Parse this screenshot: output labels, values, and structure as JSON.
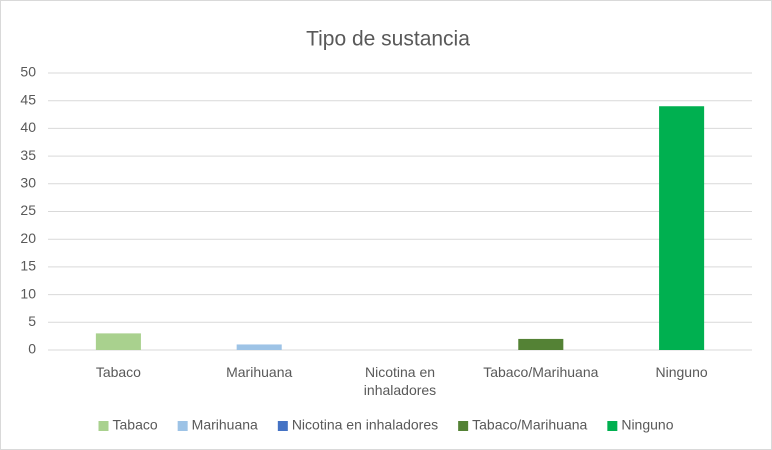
{
  "chart_data": {
    "type": "bar",
    "title": "Tipo de sustancia",
    "categories": [
      "Tabaco",
      "Marihuana",
      "Nicotina en inhaladores",
      "Tabaco/Marihuana",
      "Ninguno"
    ],
    "values": [
      3,
      1,
      0,
      2,
      44
    ],
    "colors": [
      "#a9d18e",
      "#9dc3e6",
      "#4472c4",
      "#548235",
      "#00b050"
    ],
    "ylim": [
      0,
      50
    ],
    "yticks": [
      0,
      5,
      10,
      15,
      20,
      25,
      30,
      35,
      40,
      45,
      50
    ],
    "grid": true,
    "legend": "bottom"
  }
}
